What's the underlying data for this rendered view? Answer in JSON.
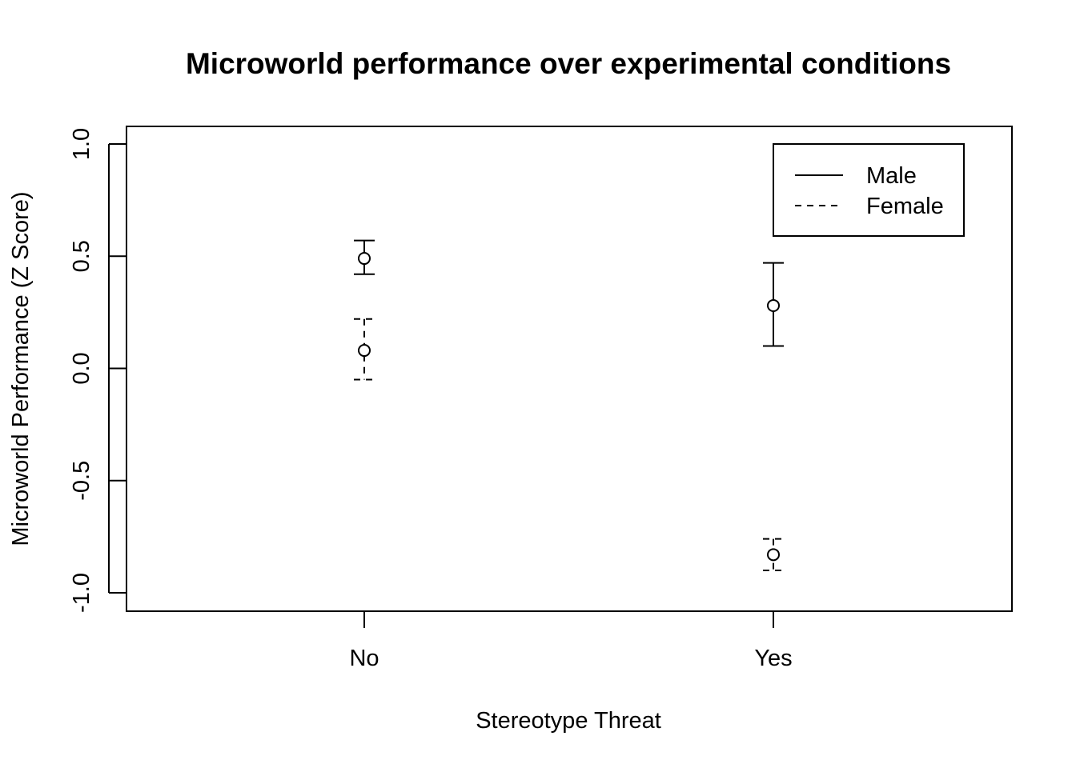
{
  "chart_data": {
    "type": "scatter",
    "title": "Microworld performance over experimental conditions",
    "xlabel": "Stereotype Threat",
    "ylabel": "Microworld Performance (Z Score)",
    "categories": [
      "No",
      "Yes"
    ],
    "ylim": [
      -1.0,
      1.0
    ],
    "yticks": [
      "-1.0",
      "-0.5",
      "0.0",
      "0.5",
      "1.0"
    ],
    "legend_position": "top-right",
    "grid": false,
    "series": [
      {
        "name": "Male",
        "line_style": "solid",
        "points": [
          {
            "x": "No",
            "y": 0.49,
            "lower": 0.42,
            "upper": 0.57
          },
          {
            "x": "Yes",
            "y": 0.28,
            "lower": 0.1,
            "upper": 0.47
          }
        ]
      },
      {
        "name": "Female",
        "line_style": "dashed",
        "points": [
          {
            "x": "No",
            "y": 0.08,
            "lower": -0.05,
            "upper": 0.22
          },
          {
            "x": "Yes",
            "y": -0.83,
            "lower": -0.9,
            "upper": -0.76
          }
        ]
      }
    ]
  }
}
